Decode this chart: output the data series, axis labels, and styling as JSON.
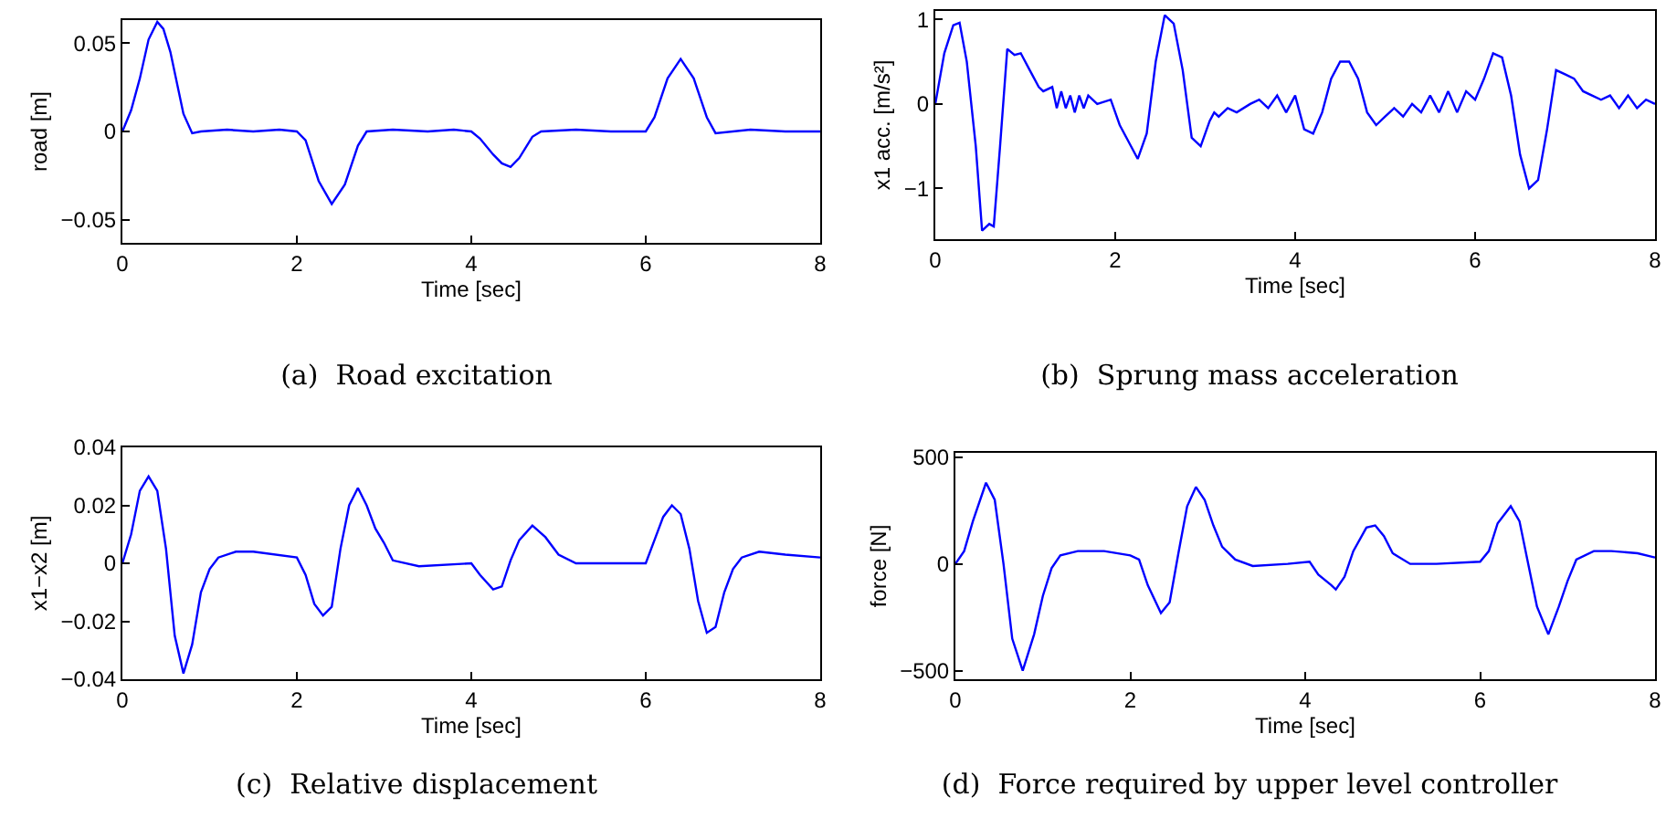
{
  "chart_data": [
    {
      "type": "line",
      "title": "(a)  Road excitation",
      "xlabel": "Time [sec]",
      "ylabel": "road [m]",
      "xlim": [
        0,
        8
      ],
      "xticks": [
        0,
        2,
        4,
        6,
        8
      ],
      "ylim": [
        -0.063,
        0.063
      ],
      "yticks": [
        -0.05,
        0,
        0.05
      ],
      "grid": false,
      "marker": "none",
      "line_style": "solid",
      "series": [
        {
          "color": "#0000ff",
          "x": [
            0,
            0.1,
            0.2,
            0.3,
            0.4,
            0.47,
            0.55,
            0.7,
            0.8,
            0.9,
            1.2,
            1.5,
            1.8,
            2.0,
            2.1,
            2.25,
            2.4,
            2.55,
            2.7,
            2.8,
            3.1,
            3.5,
            3.8,
            4.0,
            4.1,
            4.25,
            4.35,
            4.45,
            4.55,
            4.7,
            4.8,
            5.2,
            5.6,
            6.0,
            6.1,
            6.25,
            6.4,
            6.55,
            6.7,
            6.8,
            7.2,
            7.6,
            8
          ],
          "values": [
            0,
            0.012,
            0.03,
            0.052,
            0.062,
            0.058,
            0.045,
            0.01,
            -0.001,
            0,
            0.001,
            0,
            0.001,
            0,
            -0.005,
            -0.028,
            -0.041,
            -0.03,
            -0.008,
            0,
            0.001,
            0,
            0.001,
            0,
            -0.004,
            -0.013,
            -0.018,
            -0.02,
            -0.015,
            -0.003,
            0,
            0.001,
            0,
            0,
            0.008,
            0.03,
            0.041,
            0.03,
            0.008,
            -0.001,
            0.001,
            0,
            0
          ]
        }
      ]
    },
    {
      "type": "line",
      "title": "(b)  Sprung mass acceleration",
      "xlabel": "Time [sec]",
      "ylabel": "x1 acc. [m/s²]",
      "xlim": [
        0,
        8
      ],
      "xticks": [
        0,
        2,
        4,
        6,
        8
      ],
      "ylim": [
        -1.6,
        1.1
      ],
      "yticks": [
        -1,
        0,
        1
      ],
      "grid": false,
      "marker": "none",
      "line_style": "solid",
      "series": [
        {
          "color": "#0000ff",
          "x": [
            0,
            0.1,
            0.2,
            0.27,
            0.35,
            0.45,
            0.52,
            0.6,
            0.65,
            0.72,
            0.8,
            0.88,
            0.95,
            1.05,
            1.15,
            1.2,
            1.3,
            1.35,
            1.4,
            1.45,
            1.5,
            1.55,
            1.6,
            1.65,
            1.7,
            1.8,
            1.95,
            2.05,
            2.15,
            2.25,
            2.35,
            2.45,
            2.55,
            2.65,
            2.75,
            2.85,
            2.95,
            3.05,
            3.1,
            3.15,
            3.25,
            3.35,
            3.5,
            3.6,
            3.7,
            3.8,
            3.9,
            4.0,
            4.1,
            4.2,
            4.3,
            4.4,
            4.5,
            4.6,
            4.7,
            4.8,
            4.9,
            5.0,
            5.1,
            5.2,
            5.3,
            5.4,
            5.5,
            5.6,
            5.7,
            5.8,
            5.9,
            6.0,
            6.1,
            6.2,
            6.3,
            6.4,
            6.5,
            6.6,
            6.7,
            6.8,
            6.9,
            7.0,
            7.1,
            7.2,
            7.3,
            7.4,
            7.5,
            7.6,
            7.7,
            7.8,
            7.9,
            8
          ],
          "values": [
            0,
            0.6,
            0.93,
            0.96,
            0.5,
            -0.5,
            -1.5,
            -1.42,
            -1.45,
            -0.5,
            0.65,
            0.58,
            0.6,
            0.4,
            0.2,
            0.15,
            0.2,
            -0.05,
            0.15,
            -0.05,
            0.1,
            -0.1,
            0.1,
            -0.05,
            0.1,
            0,
            0.05,
            -0.25,
            -0.45,
            -0.65,
            -0.35,
            0.5,
            1.05,
            0.95,
            0.4,
            -0.4,
            -0.5,
            -0.2,
            -0.1,
            -0.15,
            -0.05,
            -0.1,
            0,
            0.05,
            -0.05,
            0.1,
            -0.1,
            0.1,
            -0.3,
            -0.35,
            -0.1,
            0.3,
            0.5,
            0.5,
            0.3,
            -0.1,
            -0.25,
            -0.15,
            -0.05,
            -0.15,
            0,
            -0.1,
            0.1,
            -0.1,
            0.15,
            -0.1,
            0.15,
            0.05,
            0.3,
            0.6,
            0.55,
            0.1,
            -0.6,
            -1.0,
            -0.9,
            -0.3,
            0.4,
            0.35,
            0.3,
            0.15,
            0.1,
            0.05,
            0.1,
            -0.05,
            0.1,
            -0.05,
            0.05,
            0
          ]
        }
      ]
    },
    {
      "type": "line",
      "title": "(c)  Relative displacement",
      "xlabel": "Time [sec]",
      "ylabel": "x1−x2 [m]",
      "xlim": [
        0,
        8
      ],
      "xticks": [
        0,
        2,
        4,
        6,
        8
      ],
      "ylim": [
        -0.04,
        0.04
      ],
      "yticks": [
        -0.04,
        -0.02,
        0,
        0.02,
        0.04
      ],
      "grid": false,
      "marker": "none",
      "line_style": "solid",
      "series": [
        {
          "color": "#0000ff",
          "x": [
            0,
            0.1,
            0.2,
            0.3,
            0.4,
            0.5,
            0.6,
            0.7,
            0.8,
            0.9,
            1.0,
            1.1,
            1.3,
            1.5,
            2.0,
            2.1,
            2.2,
            2.3,
            2.4,
            2.5,
            2.6,
            2.7,
            2.8,
            2.9,
            3.0,
            3.1,
            3.4,
            4.0,
            4.1,
            4.25,
            4.35,
            4.45,
            4.55,
            4.7,
            4.85,
            5.0,
            5.2,
            6.0,
            6.1,
            6.2,
            6.3,
            6.4,
            6.5,
            6.6,
            6.7,
            6.8,
            6.9,
            7.0,
            7.1,
            7.3,
            7.6,
            8
          ],
          "values": [
            0,
            0.01,
            0.025,
            0.03,
            0.025,
            0.005,
            -0.025,
            -0.038,
            -0.028,
            -0.01,
            -0.002,
            0.002,
            0.004,
            0.004,
            0.002,
            -0.004,
            -0.014,
            -0.018,
            -0.015,
            0.005,
            0.02,
            0.026,
            0.02,
            0.012,
            0.007,
            0.001,
            -0.001,
            0,
            -0.004,
            -0.009,
            -0.008,
            0.001,
            0.008,
            0.013,
            0.009,
            0.003,
            0,
            0,
            0.008,
            0.016,
            0.02,
            0.017,
            0.005,
            -0.013,
            -0.024,
            -0.022,
            -0.01,
            -0.002,
            0.002,
            0.004,
            0.003,
            0.002
          ]
        }
      ]
    },
    {
      "type": "line",
      "title": "(d)  Force required by upper level controller",
      "xlabel": "Time [sec]",
      "ylabel": "force [N]",
      "xlim": [
        0,
        8
      ],
      "xticks": [
        0,
        2,
        4,
        6,
        8
      ],
      "ylim": [
        -540,
        520
      ],
      "yticks": [
        -500,
        0,
        500
      ],
      "grid": false,
      "marker": "none",
      "line_style": "solid",
      "series": [
        {
          "color": "#0000ff",
          "x": [
            0,
            0.1,
            0.2,
            0.35,
            0.45,
            0.55,
            0.65,
            0.77,
            0.9,
            1.0,
            1.1,
            1.2,
            1.4,
            1.7,
            2.0,
            2.1,
            2.2,
            2.35,
            2.45,
            2.55,
            2.65,
            2.75,
            2.85,
            2.95,
            3.05,
            3.2,
            3.4,
            3.8,
            4.05,
            4.15,
            4.3,
            4.35,
            4.45,
            4.55,
            4.7,
            4.8,
            4.9,
            5.0,
            5.2,
            5.5,
            6.0,
            6.1,
            6.2,
            6.35,
            6.45,
            6.55,
            6.65,
            6.78,
            6.9,
            7.0,
            7.1,
            7.3,
            7.5,
            7.8,
            8
          ],
          "values": [
            0,
            60,
            200,
            380,
            300,
            0,
            -350,
            -500,
            -330,
            -150,
            -20,
            40,
            60,
            60,
            40,
            20,
            -100,
            -230,
            -180,
            50,
            270,
            360,
            300,
            180,
            80,
            20,
            -10,
            0,
            10,
            -50,
            -100,
            -120,
            -60,
            60,
            170,
            180,
            130,
            50,
            0,
            0,
            10,
            60,
            190,
            270,
            200,
            0,
            -200,
            -330,
            -200,
            -80,
            20,
            60,
            60,
            50,
            30
          ]
        }
      ]
    }
  ]
}
